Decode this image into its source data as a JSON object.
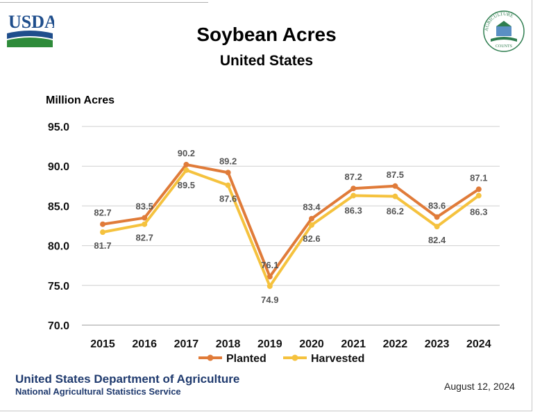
{
  "header": {
    "title": "Soybean Acres",
    "subtitle": "United States",
    "usda_logo_text": "USDA",
    "ag_logo_text": "AGRICULTURE COUNTS"
  },
  "chart_data": {
    "type": "line",
    "ylabel": "Million Acres",
    "xlabel": "",
    "ylim": [
      70,
      95
    ],
    "yticks": [
      "95.0",
      "90.0",
      "85.0",
      "80.0",
      "75.0",
      "70.0"
    ],
    "grid": true,
    "legend_position": "bottom",
    "categories": [
      "2015",
      "2016",
      "2017",
      "2018",
      "2019",
      "2020",
      "2021",
      "2022",
      "2023",
      "2024"
    ],
    "series": [
      {
        "name": "Planted",
        "color": "#e07b39",
        "values": [
          82.7,
          83.5,
          90.2,
          89.2,
          76.1,
          83.4,
          87.2,
          87.5,
          83.6,
          87.1
        ]
      },
      {
        "name": "Harvested",
        "color": "#f5c23e",
        "values": [
          81.7,
          82.7,
          89.5,
          87.6,
          74.9,
          82.6,
          86.3,
          86.2,
          82.4,
          86.3
        ]
      }
    ]
  },
  "footer": {
    "organization": "United States Department of Agriculture",
    "agency": "National Agricultural Statistics Service",
    "date": "August 12, 2024"
  }
}
